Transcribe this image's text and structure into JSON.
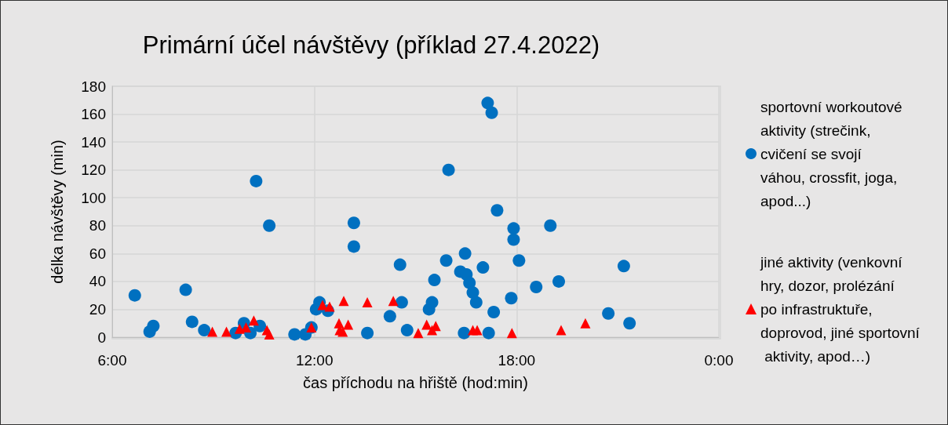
{
  "chart_data": {
    "type": "scatter",
    "title": "Primární účel návštěvy (příklad 27.4.2022)",
    "xlabel": "čas příchodu na hřiště (hod:min)",
    "ylabel": "délka návštěvy (min)",
    "xlim": [
      6,
      24
    ],
    "xticks": [
      {
        "value": 6,
        "label": "6:00"
      },
      {
        "value": 12,
        "label": "12:00"
      },
      {
        "value": 18,
        "label": "18:00"
      },
      {
        "value": 24,
        "label": "0:00"
      }
    ],
    "ylim": [
      0,
      180
    ],
    "yticks": [
      0,
      20,
      40,
      60,
      80,
      100,
      120,
      140,
      160,
      180
    ],
    "grid": true,
    "legend": "right",
    "series": [
      {
        "name": "sportovní workoutové aktivity (strečink, cvičení se svojí váhou, crossfit, joga, apod...)",
        "color": "#0070c0",
        "marker": "circle",
        "x": [
          6.67,
          7.11,
          7.22,
          8.18,
          8.37,
          8.73,
          9.54,
          9.66,
          9.91,
          10.1,
          10.19,
          10.38,
          10.27,
          10.66,
          11.41,
          11.73,
          11.91,
          12.05,
          12.15,
          12.4,
          13.17,
          13.17,
          13.57,
          14.24,
          14.54,
          14.59,
          14.75,
          15.4,
          15.49,
          15.56,
          15.91,
          15.98,
          16.33,
          16.47,
          16.51,
          16.6,
          16.7,
          16.8,
          16.44,
          17.0,
          17.14,
          17.26,
          17.17,
          17.32,
          17.42,
          17.91,
          17.91,
          17.84,
          18.07,
          18.58,
          19.0,
          19.25,
          20.72,
          21.18,
          21.35
        ],
        "values": [
          30,
          4,
          8,
          34,
          11,
          5,
          null,
          3,
          10,
          3,
          null,
          8,
          112,
          80,
          2,
          2,
          7,
          20,
          25,
          19,
          82,
          65,
          3,
          15,
          52,
          25,
          5,
          20,
          25,
          41,
          55,
          120,
          47,
          60,
          45,
          39,
          32,
          25,
          3,
          50,
          168,
          161,
          3,
          18,
          91,
          78,
          70,
          28,
          55,
          36,
          80,
          40,
          17,
          51,
          10
        ]
      },
      {
        "name": "jiné aktivity (venkovní hry, dozor, prolézání po infrastruktuře, doprovod, jiné sportovní aktivity, apod…)",
        "color": "#ff0000",
        "marker": "triangle",
        "x": [
          8.97,
          9.39,
          9.78,
          9.97,
          10.2,
          10.59,
          10.66,
          11.91,
          12.24,
          12.45,
          12.73,
          12.75,
          12.84,
          13.0,
          12.87,
          13.57,
          14.34,
          15.08,
          15.33,
          15.49,
          15.6,
          16.7,
          16.83,
          17.86,
          19.32,
          20.04
        ],
        "values": [
          4,
          4,
          6,
          7,
          12,
          5,
          2,
          7,
          23,
          22,
          10,
          5,
          4,
          9,
          26,
          25,
          26,
          3,
          9,
          5,
          8,
          5,
          5,
          3,
          5,
          10
        ]
      }
    ]
  }
}
